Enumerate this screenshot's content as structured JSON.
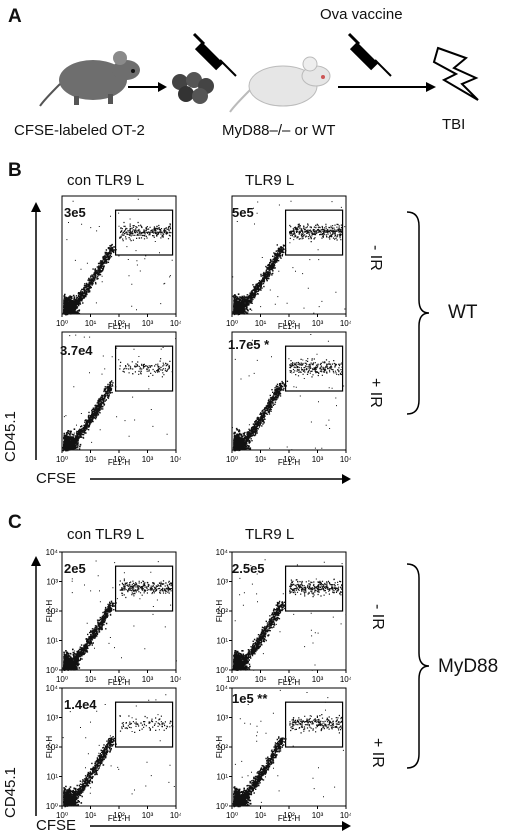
{
  "panelA": {
    "letter": "A",
    "vaccine_label": "Ova vaccine",
    "cells_label": "CFSE-labeled OT-2",
    "recipient_label": "MyD88–/– or WT",
    "tbi_label": "TBI"
  },
  "panelB": {
    "letter": "B",
    "col_titles": [
      "con TLR9 L",
      "TLR9 L"
    ],
    "row_labels": [
      "- IR",
      "+ IR"
    ],
    "group_label": "WT",
    "y_axis_label": "CD45.1",
    "x_axis_label": "CFSE",
    "plot_x_label": "FL1-H",
    "counts": [
      "3e5",
      "5e5",
      "3.7e4",
      "1.7e5 *"
    ]
  },
  "panelC": {
    "letter": "C",
    "col_titles": [
      "con TLR9 L",
      "TLR9 L"
    ],
    "row_labels": [
      "- IR",
      "+ IR"
    ],
    "group_label": "MyD88",
    "y_axis_label": "CD45.1",
    "x_axis_label": "CFSE",
    "plot_x_label": "FL1-H",
    "plot_y_label": "FL2-H",
    "counts": [
      "2e5",
      "2.5e5",
      "1.4e4",
      "1e5 **"
    ]
  },
  "tick_labels": [
    "10⁰",
    "10¹",
    "10²",
    "10³",
    "10⁴"
  ]
}
